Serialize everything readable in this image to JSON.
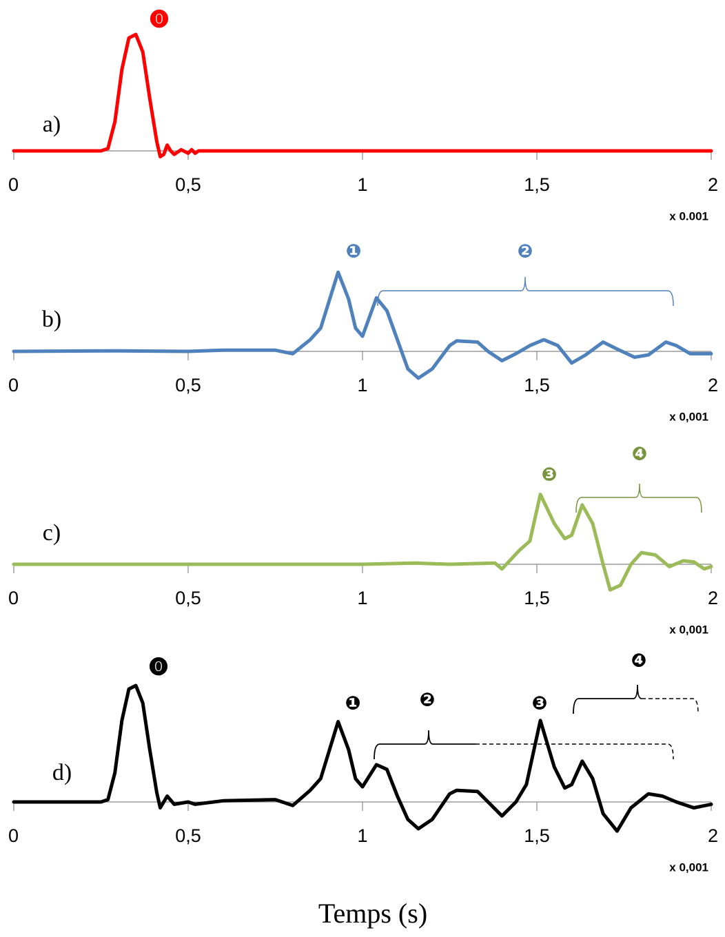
{
  "chart_data": [
    {
      "type": "line",
      "panel": "a)",
      "scale_note": "x 0.001",
      "annotations": [
        "⓿"
      ],
      "annotation_color": "#ff0000",
      "x": [
        0,
        0.25,
        0.27,
        0.29,
        0.31,
        0.33,
        0.35,
        0.37,
        0.39,
        0.41,
        0.42,
        0.43,
        0.44,
        0.45,
        0.46,
        0.48,
        0.5,
        0.51,
        0.52,
        0.53,
        2
      ],
      "series": [
        {
          "color": "#ff0000",
          "values": [
            0,
            0,
            0.02,
            0.25,
            0.7,
            0.97,
            1.0,
            0.85,
            0.45,
            0.08,
            -0.05,
            -0.03,
            0.05,
            0.0,
            -0.03,
            0.01,
            -0.02,
            0.01,
            -0.02,
            0,
            0
          ]
        }
      ],
      "xlim": [
        0,
        2
      ],
      "ylim": [
        -0.3,
        1.1
      ],
      "xticks": [
        0,
        {
          "value": 0.5,
          "label": "0,5"
        },
        1,
        {
          "value": 1.5,
          "label": "1,5"
        },
        2
      ]
    },
    {
      "type": "line",
      "panel": "b)",
      "scale_note": "x 0,001",
      "annotations": [
        "❶",
        "❷"
      ],
      "annotation_color": "#4f81bd",
      "x": [
        0,
        0.3,
        0.5,
        0.6,
        0.75,
        0.8,
        0.85,
        0.88,
        0.93,
        0.96,
        0.98,
        1.0,
        1.04,
        1.07,
        1.1,
        1.13,
        1.16,
        1.2,
        1.25,
        1.27,
        1.33,
        1.36,
        1.4,
        1.44,
        1.48,
        1.52,
        1.56,
        1.6,
        1.64,
        1.69,
        1.73,
        1.78,
        1.82,
        1.87,
        1.9,
        1.94,
        2.0
      ],
      "series": [
        {
          "color": "#4f81bd",
          "values": [
            0,
            0.005,
            0,
            0.01,
            0.01,
            -0.02,
            0.1,
            0.2,
            0.68,
            0.45,
            0.2,
            0.13,
            0.46,
            0.35,
            0.1,
            -0.15,
            -0.23,
            -0.15,
            0.05,
            0.09,
            0.08,
            0.0,
            -0.08,
            -0.02,
            0.05,
            0.1,
            0.05,
            -0.1,
            -0.03,
            0.08,
            0.02,
            -0.05,
            -0.03,
            0.08,
            0.05,
            -0.02,
            -0.02
          ]
        }
      ],
      "xlim": [
        0,
        2
      ],
      "ylim": [
        -0.3,
        1.1
      ],
      "xticks": [
        0,
        {
          "value": 0.5,
          "label": "0,5"
        },
        1,
        {
          "value": 1.5,
          "label": "1,5"
        },
        2
      ]
    },
    {
      "type": "line",
      "panel": "c)",
      "scale_note": "x 0,001",
      "annotations": [
        "❸",
        "❹"
      ],
      "annotation_color": "#77933c",
      "x": [
        0,
        0.5,
        1.0,
        1.15,
        1.25,
        1.38,
        1.4,
        1.45,
        1.48,
        1.51,
        1.55,
        1.58,
        1.6,
        1.63,
        1.66,
        1.69,
        1.71,
        1.74,
        1.77,
        1.8,
        1.84,
        1.88,
        1.92,
        1.95,
        1.98,
        2.0
      ],
      "series": [
        {
          "color": "#9bbb59",
          "values": [
            0,
            0,
            0,
            0.01,
            0,
            0.01,
            -0.04,
            0.12,
            0.2,
            0.6,
            0.35,
            0.22,
            0.25,
            0.51,
            0.35,
            0.0,
            -0.22,
            -0.18,
            0.0,
            0.1,
            0.08,
            -0.02,
            0.03,
            0.02,
            -0.04,
            -0.02
          ]
        }
      ],
      "xlim": [
        0,
        2
      ],
      "ylim": [
        -0.3,
        1.1
      ],
      "xticks": [
        0,
        {
          "value": 0.5,
          "label": "0,5"
        },
        1,
        {
          "value": 1.5,
          "label": "1,5"
        },
        2
      ]
    },
    {
      "type": "line",
      "panel": "d)",
      "scale_note": "x 0,001",
      "annotations": [
        "⓿",
        "❶",
        "❷",
        "❸",
        "❹"
      ],
      "annotation_color": "#000000",
      "x": [
        0,
        0.25,
        0.27,
        0.29,
        0.31,
        0.33,
        0.35,
        0.37,
        0.39,
        0.41,
        0.42,
        0.44,
        0.46,
        0.5,
        0.52,
        0.6,
        0.75,
        0.8,
        0.85,
        0.88,
        0.93,
        0.96,
        0.98,
        1.0,
        1.04,
        1.07,
        1.1,
        1.13,
        1.16,
        1.2,
        1.25,
        1.27,
        1.33,
        1.36,
        1.4,
        1.44,
        1.47,
        1.51,
        1.55,
        1.58,
        1.6,
        1.63,
        1.66,
        1.69,
        1.73,
        1.77,
        1.82,
        1.86,
        1.9,
        1.95,
        2.0
      ],
      "series": [
        {
          "color": "#000000",
          "values": [
            0,
            0,
            0.02,
            0.25,
            0.7,
            0.97,
            1.0,
            0.85,
            0.45,
            0.08,
            -0.05,
            0.05,
            -0.02,
            0.0,
            -0.02,
            0.01,
            0.02,
            -0.03,
            0.1,
            0.2,
            0.69,
            0.45,
            0.2,
            0.13,
            0.32,
            0.28,
            0.05,
            -0.15,
            -0.23,
            -0.15,
            0.07,
            0.1,
            0.09,
            0.0,
            -0.12,
            0.0,
            0.15,
            0.7,
            0.3,
            0.12,
            0.15,
            0.35,
            0.2,
            -0.1,
            -0.25,
            -0.05,
            0.07,
            0.05,
            0.0,
            -0.05,
            -0.02
          ]
        }
      ],
      "xlim": [
        0,
        2
      ],
      "ylim": [
        -0.3,
        1.1
      ],
      "xticks": [
        0,
        {
          "value": 0.5,
          "label": "0,5"
        },
        1,
        {
          "value": 1.5,
          "label": "1,5"
        },
        2
      ]
    }
  ],
  "xlabel": "Temps (s)"
}
